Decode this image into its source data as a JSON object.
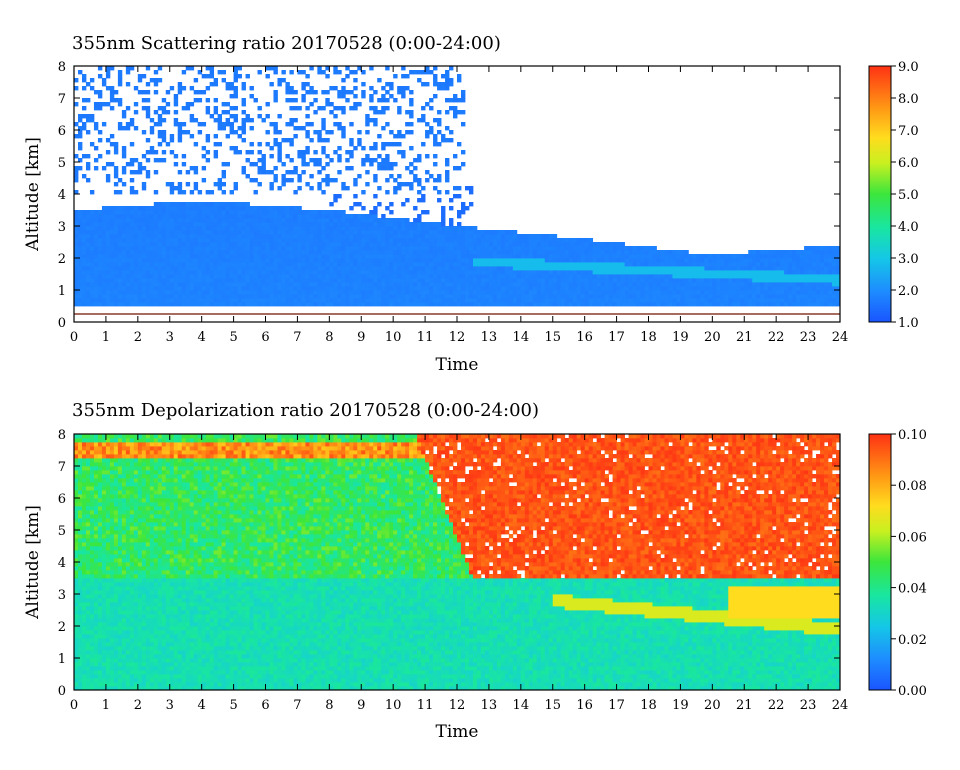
{
  "chart_data": [
    {
      "type": "heatmap",
      "title": "355nm Scattering ratio   20170528 (0:00-24:00)",
      "xlabel": "Time",
      "ylabel": "Altitude [km]",
      "xlim": [
        0,
        24
      ],
      "ylim": [
        0,
        8
      ],
      "x_ticks": [
        "0",
        "1",
        "2",
        "3",
        "4",
        "5",
        "6",
        "7",
        "8",
        "9",
        "10",
        "11",
        "12",
        "13",
        "14",
        "15",
        "16",
        "17",
        "18",
        "19",
        "20",
        "21",
        "22",
        "23",
        "24"
      ],
      "y_ticks": [
        "0",
        "1",
        "2",
        "3",
        "4",
        "5",
        "6",
        "7",
        "8"
      ],
      "colorbar": {
        "range": [
          1.0,
          9.0
        ],
        "ticks": [
          "1.0",
          "2.0",
          "3.0",
          "4.0",
          "5.0",
          "6.0",
          "7.0",
          "8.0",
          "9.0"
        ]
      },
      "features": {
        "background_value": 1.5,
        "boundary_layer_top_km": [
          {
            "t": 0,
            "z": 3.5
          },
          {
            "t": 4,
            "z": 3.8
          },
          {
            "t": 8,
            "z": 3.5
          },
          {
            "t": 12,
            "z": 3.0
          },
          {
            "t": 16,
            "z": 2.6
          },
          {
            "t": 20,
            "z": 2.1
          },
          {
            "t": 24,
            "z": 2.4
          }
        ],
        "lower_cutoff_km": 0.5,
        "surface_line_km": 0.25
      }
    },
    {
      "type": "heatmap",
      "title": "355nm Depolarization ratio   20170528 (0:00-24:00)",
      "xlabel": "Time",
      "ylabel": "Altitude [km]",
      "xlim": [
        0,
        24
      ],
      "ylim": [
        0,
        8
      ],
      "x_ticks": [
        "0",
        "1",
        "2",
        "3",
        "4",
        "5",
        "6",
        "7",
        "8",
        "9",
        "10",
        "11",
        "12",
        "13",
        "14",
        "15",
        "16",
        "17",
        "18",
        "19",
        "20",
        "21",
        "22",
        "23",
        "24"
      ],
      "y_ticks": [
        "0",
        "1",
        "2",
        "3",
        "4",
        "5",
        "6",
        "7",
        "8"
      ],
      "colorbar": {
        "range": [
          0.0,
          0.1
        ],
        "ticks": [
          "0.00",
          "0.02",
          "0.04",
          "0.06",
          "0.08",
          "0.10"
        ]
      },
      "features": {
        "low_level_value": 0.03,
        "mid_level_value": 0.045,
        "upper_afternoon_value": 0.09,
        "transition_time_h": 12.5
      }
    }
  ]
}
